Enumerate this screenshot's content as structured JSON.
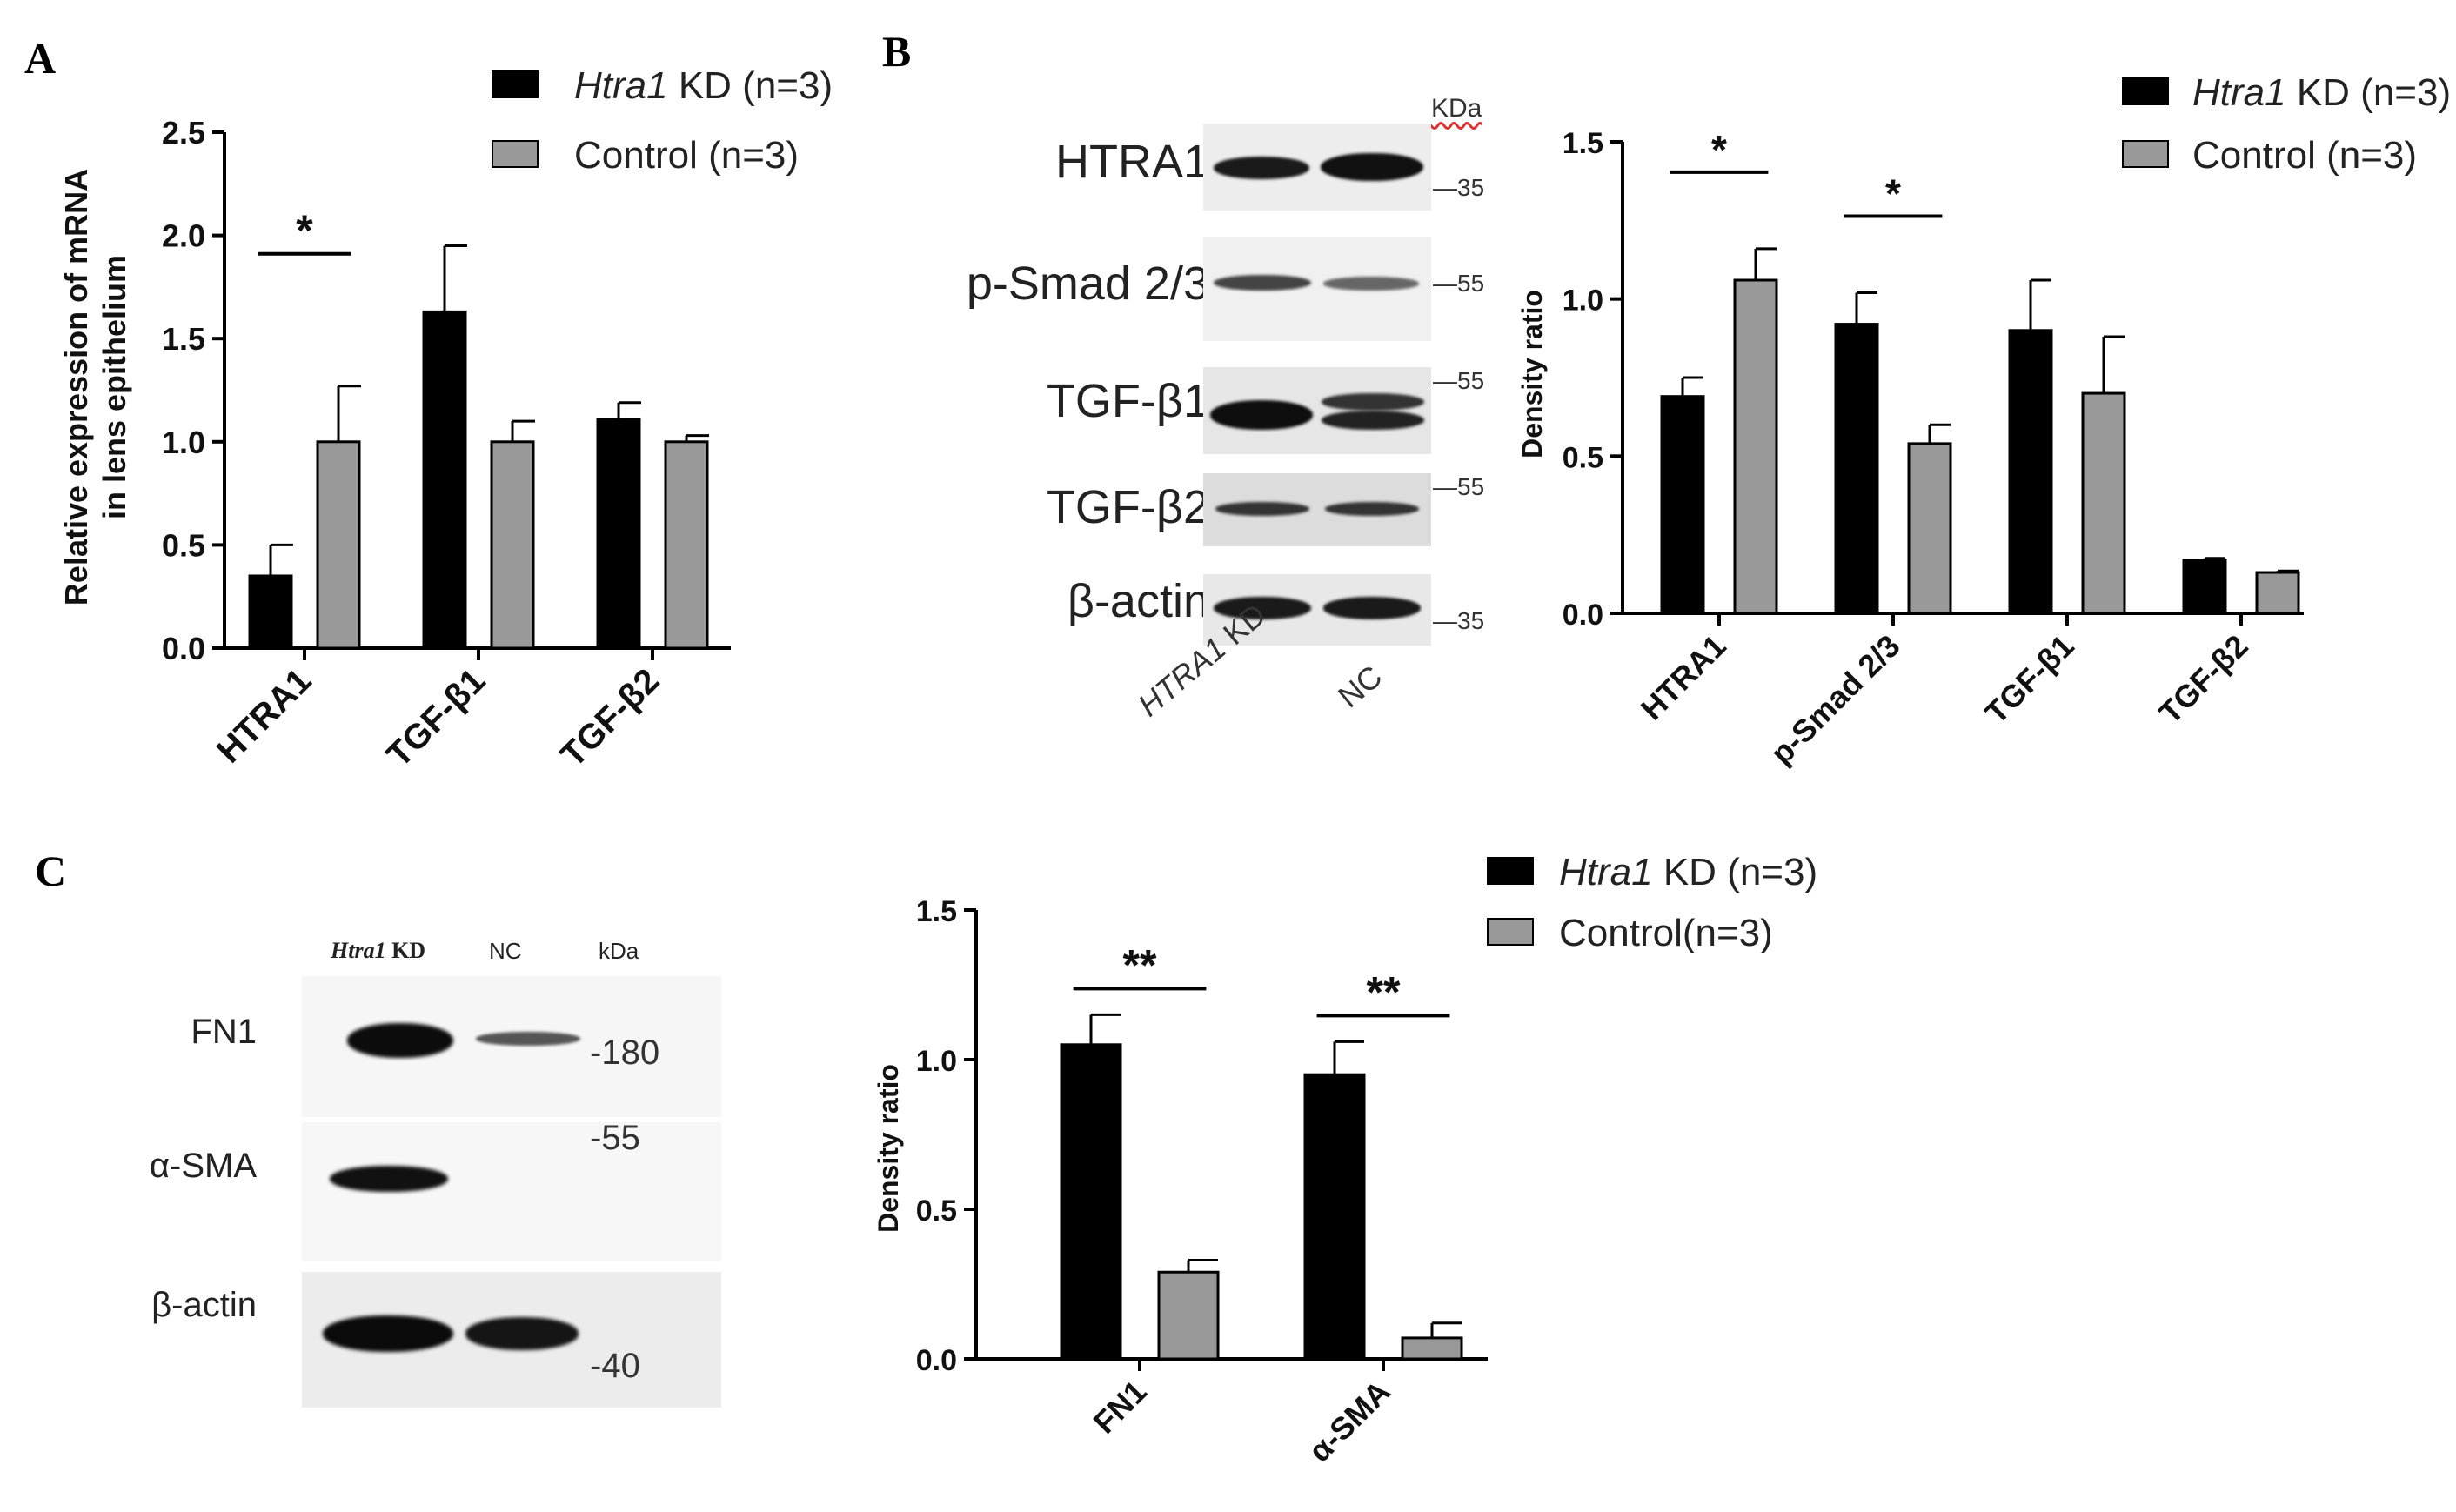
{
  "panels": {
    "A": {
      "letter": "A",
      "legend": [
        {
          "italic": "Htra1",
          "text": " KD (n=3)"
        },
        {
          "italic": "",
          "text": "Control (n=3)"
        }
      ],
      "ylabel_line1": "Relative expression of mRNA",
      "ylabel_line2": "in  lens epithelium",
      "yticks": [
        "0.0",
        "0.5",
        "1.0",
        "1.5",
        "2.0",
        "2.5"
      ],
      "significance": [
        {
          "category": "HTRA1",
          "mark": "*"
        }
      ]
    },
    "B": {
      "letter": "B",
      "blot": {
        "kda_label": "KDa",
        "rows": [
          {
            "name": "HTRA1",
            "marker": "35"
          },
          {
            "name": "p-Smad 2/3",
            "marker": "55"
          },
          {
            "name": "TGF-β1",
            "marker": "55"
          },
          {
            "name": "TGF-β2",
            "marker": "55"
          },
          {
            "name": "β-actin",
            "marker": "35"
          }
        ],
        "lanes": [
          {
            "italic": "HTRA1",
            "text": " KD"
          },
          {
            "italic": "",
            "text": "NC"
          }
        ]
      },
      "legend": [
        {
          "italic": "Htra1",
          "text": " KD (n=3)"
        },
        {
          "italic": "",
          "text": "Control (n=3)"
        }
      ],
      "ylabel": "Density ratio",
      "yticks": [
        "0.0",
        "0.5",
        "1.0",
        "1.5"
      ],
      "significance": [
        {
          "category": "HTRA1",
          "mark": "*"
        },
        {
          "category": "p-Smad 2/3",
          "mark": "*"
        }
      ]
    },
    "C": {
      "letter": "C",
      "blot": {
        "kda_label": "kDa",
        "lanes": [
          {
            "italic": "Htra1",
            "text": " KD"
          },
          {
            "italic": "",
            "text": "NC"
          }
        ],
        "rows": [
          {
            "name": "FN1",
            "marker": "180"
          },
          {
            "name": "α-SMA",
            "marker": "55"
          },
          {
            "name": "β-actin",
            "marker": "40"
          }
        ]
      },
      "legend": [
        {
          "italic": "Htra1",
          "text": " KD (n=3)"
        },
        {
          "italic": "",
          "text": "Control(n=3)"
        }
      ],
      "ylabel": "Density ratio",
      "yticks": [
        "0.0",
        "0.5",
        "1.0",
        "1.5"
      ],
      "significance": [
        {
          "category": "FN1",
          "mark": "**"
        },
        {
          "category": "α-SMA",
          "mark": "**"
        }
      ]
    }
  },
  "colors": {
    "kd": "#000000",
    "control": "#999999"
  },
  "chart_data": [
    {
      "type": "bar",
      "title": "",
      "categories": [
        "HTRA1",
        "TGF-β1",
        "TGF-β2"
      ],
      "series": [
        {
          "name": "Htra1 KD (n=3)",
          "values": [
            0.35,
            1.63,
            1.11
          ],
          "errors": [
            0.15,
            0.32,
            0.08
          ]
        },
        {
          "name": "Control (n=3)",
          "values": [
            1.0,
            1.0,
            1.0
          ],
          "errors": [
            0.27,
            0.1,
            0.03
          ]
        }
      ],
      "xlabel": "",
      "ylabel": "Relative expression of mRNA in  lens epithelium",
      "ylim": [
        0,
        2.5
      ],
      "yticks": [
        0,
        0.5,
        1.0,
        1.5,
        2.0,
        2.5
      ],
      "legend": "top"
    },
    {
      "type": "bar",
      "title": "",
      "categories": [
        "HTRA1",
        "p-Smad 2/3",
        "TGF-β1",
        "TGF-β2"
      ],
      "series": [
        {
          "name": "Htra1 KD (n=3)",
          "values": [
            0.69,
            0.92,
            0.9,
            0.17
          ],
          "errors": [
            0.06,
            0.1,
            0.16,
            0.005
          ]
        },
        {
          "name": "Control (n=3)",
          "values": [
            1.06,
            0.54,
            0.7,
            0.13
          ],
          "errors": [
            0.1,
            0.06,
            0.18,
            0.005
          ]
        }
      ],
      "xlabel": "",
      "ylabel": "Density ratio",
      "ylim": [
        0,
        1.5
      ],
      "yticks": [
        0,
        0.5,
        1.0,
        1.5
      ],
      "legend": "top-right"
    },
    {
      "type": "bar",
      "title": "",
      "categories": [
        "FN1",
        "α-SMA"
      ],
      "series": [
        {
          "name": "Htra1 KD (n=3)",
          "values": [
            1.05,
            0.95
          ],
          "errors": [
            0.1,
            0.11
          ]
        },
        {
          "name": "Control(n=3)",
          "values": [
            0.29,
            0.07
          ],
          "errors": [
            0.04,
            0.05
          ]
        }
      ],
      "xlabel": "",
      "ylabel": "Density ratio",
      "ylim": [
        0,
        1.5
      ],
      "yticks": [
        0,
        0.5,
        1.0,
        1.5
      ],
      "legend": "top-right"
    }
  ]
}
